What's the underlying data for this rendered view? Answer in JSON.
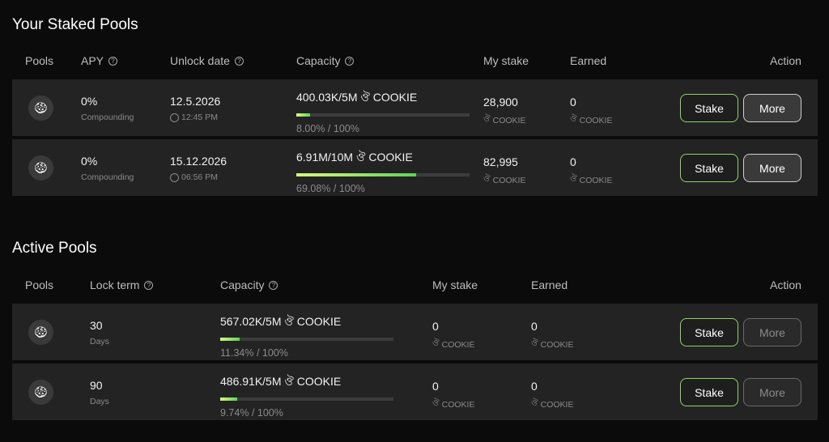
{
  "staked": {
    "title": "Your Staked Pools",
    "headers": {
      "pools": "Pools",
      "apy": "APY",
      "unlock": "Unlock date",
      "capacity": "Capacity",
      "my_stake": "My stake",
      "earned": "Earned",
      "action": "Action"
    },
    "rows": [
      {
        "apy": "0%",
        "apy_sub": "Compounding",
        "date": "12.5.2026",
        "time": "12:45 PM",
        "capacity": "400.03K/5M",
        "token": "COOKIE",
        "progress": 8.0,
        "pct": "8.00% / 100%",
        "my_stake": "28,900",
        "earned": "0",
        "unit": "COOKIE",
        "stake": "Stake",
        "more": "More"
      },
      {
        "apy": "0%",
        "apy_sub": "Compounding",
        "date": "15.12.2026",
        "time": "06:56 PM",
        "capacity": "6.91M/10M",
        "token": "COOKIE",
        "progress": 69.08,
        "pct": "69.08% / 100%",
        "my_stake": "82,995",
        "earned": "0",
        "unit": "COOKIE",
        "stake": "Stake",
        "more": "More"
      }
    ]
  },
  "active": {
    "title": "Active Pools",
    "headers": {
      "pools": "Pools",
      "lock": "Lock term",
      "capacity": "Capacity",
      "my_stake": "My stake",
      "earned": "Earned",
      "action": "Action"
    },
    "rows": [
      {
        "term": "30",
        "term_sub": "Days",
        "capacity": "567.02K/5M",
        "token": "COOKIE",
        "progress": 11.34,
        "pct": "11.34% / 100%",
        "my_stake": "0",
        "earned": "0",
        "unit": "COOKIE",
        "stake": "Stake",
        "more": "More"
      },
      {
        "term": "90",
        "term_sub": "Days",
        "capacity": "486.91K/5M",
        "token": "COOKIE",
        "progress": 9.74,
        "pct": "9.74% / 100%",
        "my_stake": "0",
        "earned": "0",
        "unit": "COOKIE",
        "stake": "Stake",
        "more": "More"
      }
    ]
  },
  "accent": "#8fd36a"
}
